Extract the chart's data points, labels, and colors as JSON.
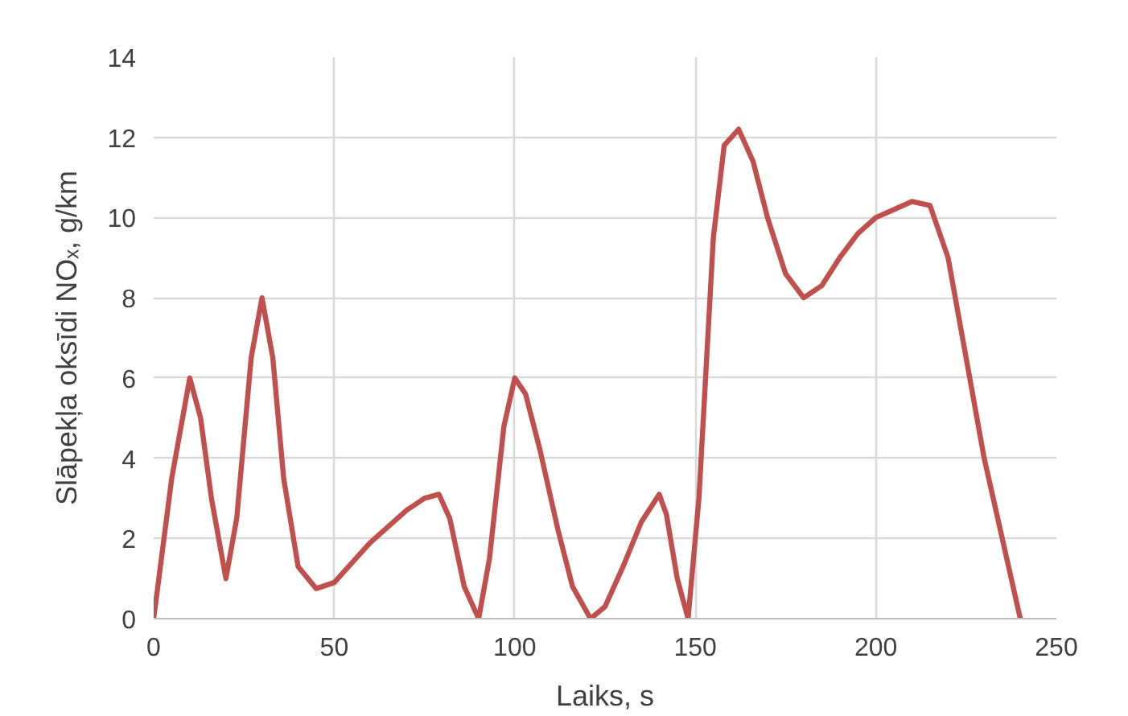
{
  "chart_data": {
    "type": "line",
    "xlabel": "Laiks, s",
    "ylabel": "Slāpekļa oksīdi NOₓ, g/km",
    "x": [
      0,
      5,
      10,
      13,
      16,
      20,
      23,
      27,
      30,
      33,
      36,
      40,
      45,
      50,
      55,
      60,
      65,
      70,
      75,
      79,
      82,
      86,
      90,
      93,
      97,
      100,
      103,
      107,
      112,
      116,
      121,
      125,
      130,
      135,
      140,
      142,
      145,
      148,
      151,
      155,
      158,
      162,
      166,
      170,
      175,
      180,
      185,
      190,
      195,
      200,
      205,
      210,
      215,
      220,
      225,
      230,
      235,
      240
    ],
    "series": [
      {
        "color": "#c0504d",
        "values": [
          0,
          3.5,
          6,
          5,
          3,
          1,
          2.5,
          6.5,
          8,
          6.5,
          3.5,
          1.3,
          0.75,
          0.9,
          1.4,
          1.9,
          2.3,
          2.7,
          3,
          3.1,
          2.5,
          0.8,
          0,
          1.5,
          4.8,
          6,
          5.6,
          4.2,
          2.2,
          0.8,
          0,
          0.3,
          1.3,
          2.4,
          3.1,
          2.6,
          1,
          0,
          3,
          9.5,
          11.8,
          12.2,
          11.4,
          10,
          8.6,
          8,
          8.3,
          9,
          9.6,
          10,
          10.2,
          10.4,
          10.3,
          9,
          6.5,
          4,
          2,
          0
        ]
      }
    ],
    "xlim": [
      0,
      250
    ],
    "xticks": [
      0,
      50,
      100,
      150,
      200,
      250
    ],
    "ylim": [
      0,
      14
    ],
    "yticks": [
      0,
      2,
      4,
      6,
      8,
      10,
      12,
      14
    ],
    "grid": true,
    "marker": "none",
    "line_style": "solid"
  }
}
